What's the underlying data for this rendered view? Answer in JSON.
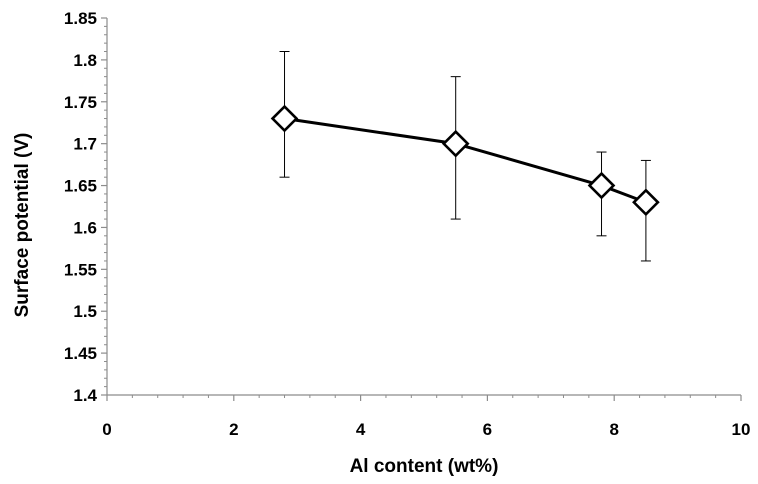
{
  "chart_data": {
    "type": "line",
    "title": "",
    "xlabel": "Al content (wt%)",
    "ylabel": "Surface potential (V)",
    "xlim": [
      0,
      10
    ],
    "ylim": [
      1.4,
      1.85
    ],
    "x_ticks": [
      "0",
      "2",
      "4",
      "6",
      "8",
      "10"
    ],
    "y_ticks": [
      "1.4",
      "1.45",
      "1.5",
      "1.55",
      "1.6",
      "1.65",
      "1.7",
      "1.75",
      "1.8",
      "1.85"
    ],
    "x_minor_step": 0.4,
    "y_minor_step": 0.01,
    "grid": false,
    "legend": "none",
    "marker": "diamond-open",
    "line_color": "#000000",
    "series": [
      {
        "x": [
          2.8,
          5.5,
          7.8,
          8.5
        ],
        "y": [
          1.73,
          1.7,
          1.65,
          1.63
        ],
        "error_upper": [
          1.81,
          1.78,
          1.69,
          1.68
        ],
        "error_lower": [
          1.66,
          1.61,
          1.59,
          1.56
        ]
      }
    ]
  }
}
